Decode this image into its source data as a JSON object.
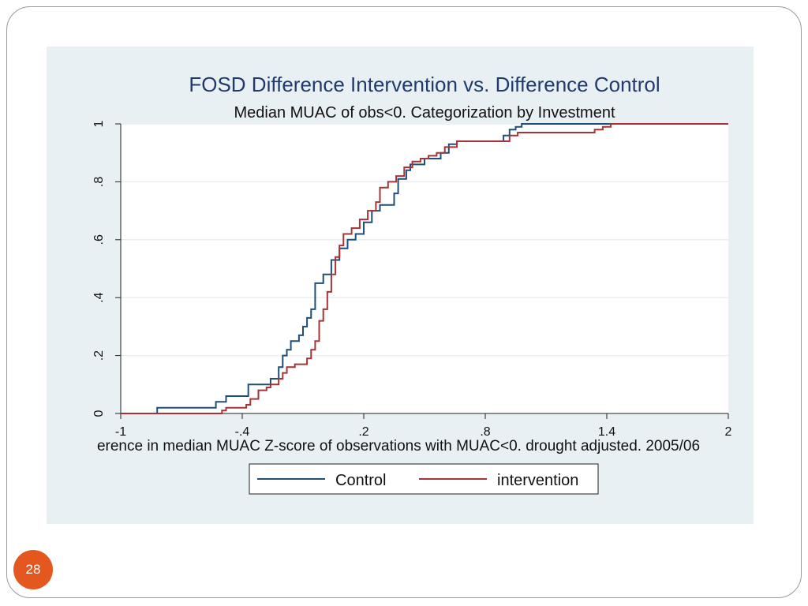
{
  "slide": {
    "page_number": "28",
    "badge_color": "#e4571f",
    "panel_color": "#e9f0f3"
  },
  "chart_data": {
    "type": "line",
    "title": "FOSD Difference Intervention vs. Difference Control",
    "subtitle": "Median MUAC of obs<0. Categorization by Investment",
    "xlabel": "erence in median MUAC Z-score of observations with MUAC<0. drought adjusted. 2005/06",
    "ylabel": "",
    "xlim": [
      -1,
      2
    ],
    "ylim": [
      0,
      1
    ],
    "x_ticks": [
      "-1",
      "-.4",
      ".2",
      ".8",
      "1.4",
      "2"
    ],
    "x_tick_values": [
      -1,
      -0.4,
      0.2,
      0.8,
      1.4,
      2
    ],
    "y_ticks": [
      "0",
      ".2",
      ".4",
      ".6",
      ".8",
      "1"
    ],
    "y_tick_values": [
      0,
      0.2,
      0.4,
      0.6,
      0.8,
      1
    ],
    "grid": true,
    "legend": "bottom",
    "series": [
      {
        "name": "Control",
        "color": "#1f4e79",
        "step": true,
        "x": [
          -1,
          -0.85,
          -0.82,
          -0.67,
          -0.53,
          -0.5,
          -0.48,
          -0.37,
          -0.35,
          -0.26,
          -0.24,
          -0.22,
          -0.2,
          -0.18,
          -0.16,
          -0.14,
          -0.12,
          -0.1,
          -0.08,
          -0.06,
          -0.04,
          -0.02,
          0.0,
          0.04,
          0.08,
          0.12,
          0.16,
          0.2,
          0.24,
          0.28,
          0.3,
          0.32,
          0.35,
          0.37,
          0.41,
          0.43,
          0.46,
          0.5,
          0.54,
          0.58,
          0.62,
          0.66,
          0.7,
          0.86,
          0.89,
          0.92,
          0.95,
          0.98,
          1.0,
          1.5,
          2.0
        ],
        "y": [
          0.0,
          0.0,
          0.02,
          0.02,
          0.04,
          0.04,
          0.06,
          0.1,
          0.1,
          0.12,
          0.12,
          0.16,
          0.2,
          0.22,
          0.25,
          0.25,
          0.27,
          0.3,
          0.33,
          0.36,
          0.45,
          0.45,
          0.48,
          0.53,
          0.57,
          0.6,
          0.62,
          0.66,
          0.7,
          0.72,
          0.72,
          0.72,
          0.76,
          0.81,
          0.84,
          0.86,
          0.86,
          0.88,
          0.88,
          0.9,
          0.93,
          0.94,
          0.94,
          0.94,
          0.96,
          0.98,
          0.99,
          1.0,
          1.0,
          1.0,
          1.0
        ]
      },
      {
        "name": "intervention",
        "color": "#a53337",
        "step": true,
        "x": [
          -1,
          -0.53,
          -0.5,
          -0.48,
          -0.4,
          -0.38,
          -0.36,
          -0.32,
          -0.3,
          -0.28,
          -0.26,
          -0.24,
          -0.22,
          -0.2,
          -0.18,
          -0.14,
          -0.12,
          -0.1,
          -0.08,
          -0.06,
          -0.04,
          -0.02,
          0.0,
          0.02,
          0.04,
          0.06,
          0.08,
          0.1,
          0.14,
          0.18,
          0.22,
          0.26,
          0.28,
          0.32,
          0.36,
          0.4,
          0.44,
          0.48,
          0.52,
          0.56,
          0.6,
          0.66,
          0.88,
          0.92,
          0.96,
          1.3,
          1.34,
          1.38,
          1.42,
          2.0
        ],
        "y": [
          0.0,
          0.0,
          0.01,
          0.02,
          0.02,
          0.03,
          0.05,
          0.08,
          0.08,
          0.09,
          0.1,
          0.1,
          0.12,
          0.14,
          0.16,
          0.17,
          0.17,
          0.17,
          0.19,
          0.22,
          0.25,
          0.32,
          0.36,
          0.42,
          0.48,
          0.54,
          0.58,
          0.62,
          0.64,
          0.67,
          0.7,
          0.73,
          0.78,
          0.8,
          0.82,
          0.85,
          0.87,
          0.88,
          0.89,
          0.9,
          0.92,
          0.94,
          0.94,
          0.96,
          0.97,
          0.97,
          0.98,
          0.99,
          1.0,
          1.0
        ]
      }
    ]
  }
}
